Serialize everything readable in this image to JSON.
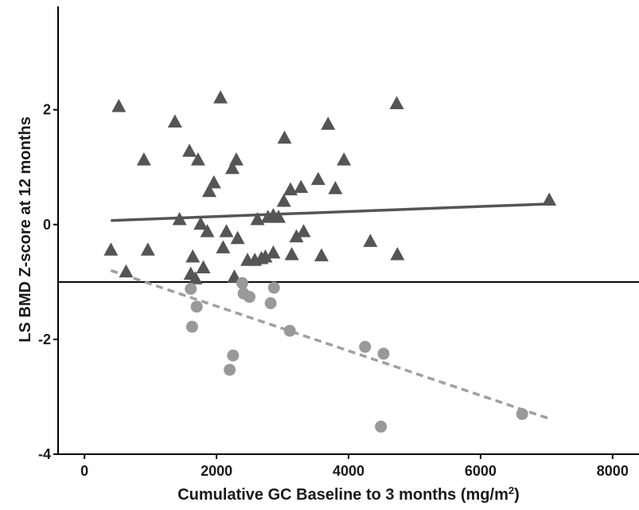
{
  "chart_data": {
    "type": "scatter",
    "title": "",
    "xlabel": "Cumulative GC Baseline to 3 months (mg/m",
    "xlabel_sup": "2",
    "xlabel_close": ")",
    "ylabel": "LS BMD Z-score at 12 months",
    "xlim": [
      -400,
      8400
    ],
    "ylim": [
      -4,
      3.8
    ],
    "x_ticks": [
      0,
      2000,
      4000,
      6000,
      8000
    ],
    "x_tick_labels": [
      "0",
      "2000",
      "4000",
      "6000",
      "8000"
    ],
    "y_ticks": [
      -4,
      -2,
      0,
      2
    ],
    "y_tick_labels": [
      "-4",
      "-2",
      "0",
      "2"
    ],
    "reference_line_y": -1,
    "grid": false,
    "legend": "none",
    "series": [
      {
        "marker": "triangle",
        "color": "#555555",
        "points": [
          {
            "x": 400,
            "y": -0.45
          },
          {
            "x": 520,
            "y": 2.05
          },
          {
            "x": 630,
            "y": -0.83
          },
          {
            "x": 900,
            "y": 1.12
          },
          {
            "x": 960,
            "y": -0.45
          },
          {
            "x": 1370,
            "y": 1.78
          },
          {
            "x": 1440,
            "y": 0.08
          },
          {
            "x": 1590,
            "y": 1.27
          },
          {
            "x": 1610,
            "y": -0.87
          },
          {
            "x": 1640,
            "y": -0.57
          },
          {
            "x": 1680,
            "y": -0.95
          },
          {
            "x": 1720,
            "y": 1.12
          },
          {
            "x": 1760,
            "y": 0.0
          },
          {
            "x": 1800,
            "y": -0.76
          },
          {
            "x": 1860,
            "y": -0.13
          },
          {
            "x": 1890,
            "y": 0.57
          },
          {
            "x": 1960,
            "y": 0.72
          },
          {
            "x": 2060,
            "y": 2.2
          },
          {
            "x": 2100,
            "y": -0.41
          },
          {
            "x": 2150,
            "y": -0.13
          },
          {
            "x": 2240,
            "y": 0.97
          },
          {
            "x": 2270,
            "y": -0.92
          },
          {
            "x": 2300,
            "y": 1.12
          },
          {
            "x": 2320,
            "y": -0.25
          },
          {
            "x": 2470,
            "y": -0.63
          },
          {
            "x": 2580,
            "y": -0.63
          },
          {
            "x": 2620,
            "y": 0.08
          },
          {
            "x": 2680,
            "y": -0.6
          },
          {
            "x": 2740,
            "y": -0.57
          },
          {
            "x": 2780,
            "y": 0.12
          },
          {
            "x": 2860,
            "y": 0.15
          },
          {
            "x": 2860,
            "y": -0.5
          },
          {
            "x": 2940,
            "y": 0.12
          },
          {
            "x": 3020,
            "y": 0.4
          },
          {
            "x": 3030,
            "y": 1.5
          },
          {
            "x": 3120,
            "y": 0.6
          },
          {
            "x": 3140,
            "y": -0.53
          },
          {
            "x": 3210,
            "y": -0.22
          },
          {
            "x": 3280,
            "y": 0.64
          },
          {
            "x": 3320,
            "y": -0.13
          },
          {
            "x": 3540,
            "y": 0.78
          },
          {
            "x": 3590,
            "y": -0.55
          },
          {
            "x": 3690,
            "y": 1.74
          },
          {
            "x": 3800,
            "y": 0.62
          },
          {
            "x": 3930,
            "y": 1.12
          },
          {
            "x": 4330,
            "y": -0.3
          },
          {
            "x": 4730,
            "y": 2.1
          },
          {
            "x": 4740,
            "y": -0.53
          },
          {
            "x": 7040,
            "y": 0.42
          }
        ]
      },
      {
        "marker": "circle",
        "color": "#999999",
        "points": [
          {
            "x": 1610,
            "y": -1.12
          },
          {
            "x": 1630,
            "y": -1.78
          },
          {
            "x": 1700,
            "y": -1.43
          },
          {
            "x": 2200,
            "y": -2.53
          },
          {
            "x": 2250,
            "y": -2.28
          },
          {
            "x": 2390,
            "y": -1.02
          },
          {
            "x": 2410,
            "y": -1.2
          },
          {
            "x": 2500,
            "y": -1.26
          },
          {
            "x": 2820,
            "y": -1.37
          },
          {
            "x": 2870,
            "y": -1.1
          },
          {
            "x": 3110,
            "y": -1.85
          },
          {
            "x": 4250,
            "y": -2.13
          },
          {
            "x": 4490,
            "y": -3.52
          },
          {
            "x": 4530,
            "y": -2.25
          },
          {
            "x": 6630,
            "y": -3.3
          }
        ]
      }
    ],
    "fit_lines": [
      {
        "style": "solid",
        "color": "#555555",
        "x1": 400,
        "y1": 0.07,
        "x2": 7040,
        "y2": 0.36
      },
      {
        "style": "dashed",
        "color": "#a0a0a0",
        "x1": 400,
        "y1": -0.8,
        "x2": 7040,
        "y2": -3.38
      }
    ]
  }
}
